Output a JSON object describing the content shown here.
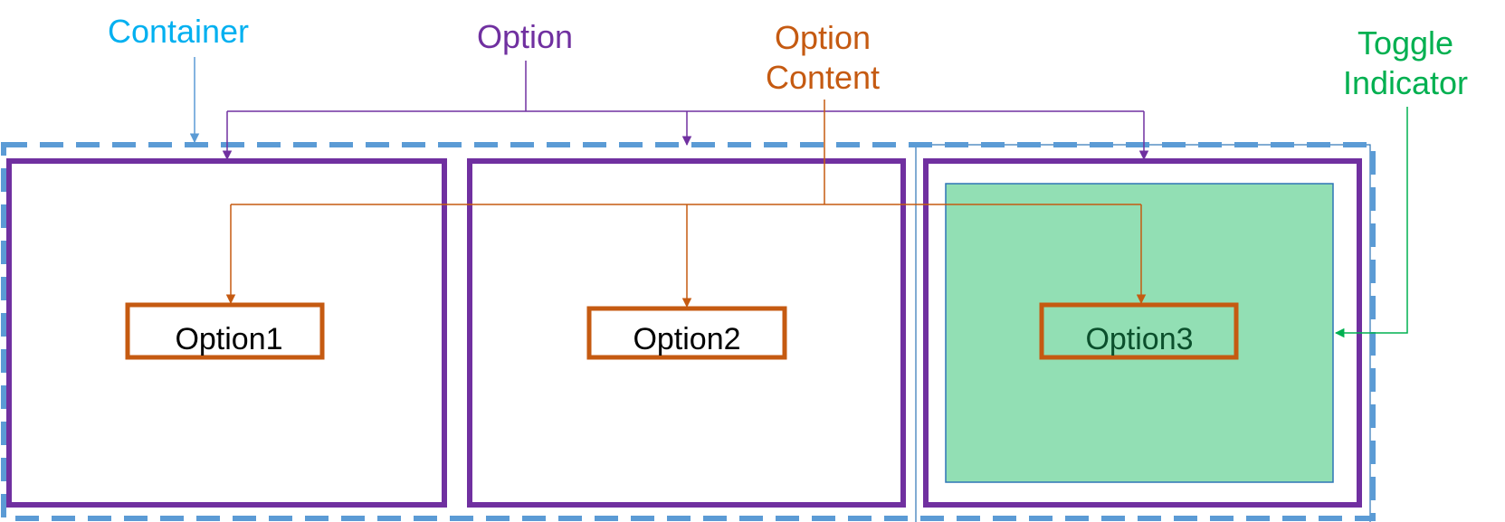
{
  "labels": {
    "container": "Container",
    "option": "Option",
    "option_content_line1": "Option",
    "option_content_line2": "Content",
    "toggle_indicator_line1": "Toggle",
    "toggle_indicator_line2": "Indicator"
  },
  "options": [
    {
      "text": "Option1",
      "selected": false
    },
    {
      "text": "Option2",
      "selected": false
    },
    {
      "text": "Option3",
      "selected": true
    }
  ],
  "colors": {
    "container": "#5B9BD5",
    "container_label": "#00B0F0",
    "option": "#7030A0",
    "option_content": "#C55A11",
    "toggle_indicator_fill": "#92DFB4",
    "toggle_indicator_stroke": "#2E75B6",
    "toggle_indicator_label": "#00B050",
    "selected_text": "#0B4F2C",
    "text": "#000000"
  }
}
